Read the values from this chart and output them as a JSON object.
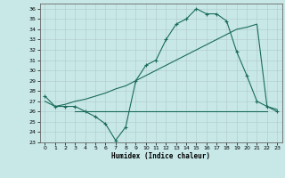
{
  "title": "",
  "xlabel": "Humidex (Indice chaleur)",
  "bg_color": "#c8e8e8",
  "grid_color": "#b0c8c8",
  "line_color": "#1a6b5a",
  "xlim": [
    -0.5,
    23.5
  ],
  "ylim": [
    23,
    36.5
  ],
  "xticks": [
    0,
    1,
    2,
    3,
    4,
    5,
    6,
    7,
    8,
    9,
    10,
    11,
    12,
    13,
    14,
    15,
    16,
    17,
    18,
    19,
    20,
    21,
    22,
    23
  ],
  "yticks": [
    23,
    24,
    25,
    26,
    27,
    28,
    29,
    30,
    31,
    32,
    33,
    34,
    35,
    36
  ],
  "line1_x": [
    0,
    1,
    2,
    3,
    4,
    5,
    6,
    7,
    8,
    9,
    10,
    11,
    12,
    13,
    14,
    15,
    16,
    17,
    18,
    19,
    20,
    21,
    22,
    23
  ],
  "line1_y": [
    27.5,
    26.5,
    26.5,
    26.5,
    26.0,
    25.5,
    24.8,
    23.2,
    24.5,
    29.0,
    30.5,
    31.0,
    33.0,
    34.5,
    35.0,
    36.0,
    35.5,
    35.5,
    34.8,
    31.8,
    29.5,
    27.0,
    26.5,
    26.0
  ],
  "line2_x": [
    3,
    22
  ],
  "line2_y": [
    26.0,
    26.0
  ],
  "line3_x": [
    0,
    1,
    2,
    3,
    4,
    5,
    6,
    7,
    8,
    9,
    10,
    11,
    12,
    13,
    14,
    15,
    16,
    17,
    18,
    19,
    20,
    21,
    22,
    23
  ],
  "line3_y": [
    27.0,
    26.5,
    26.7,
    27.0,
    27.2,
    27.5,
    27.8,
    28.2,
    28.5,
    29.0,
    29.5,
    30.0,
    30.5,
    31.0,
    31.5,
    32.0,
    32.5,
    33.0,
    33.5,
    34.0,
    34.2,
    34.5,
    26.5,
    26.2
  ]
}
